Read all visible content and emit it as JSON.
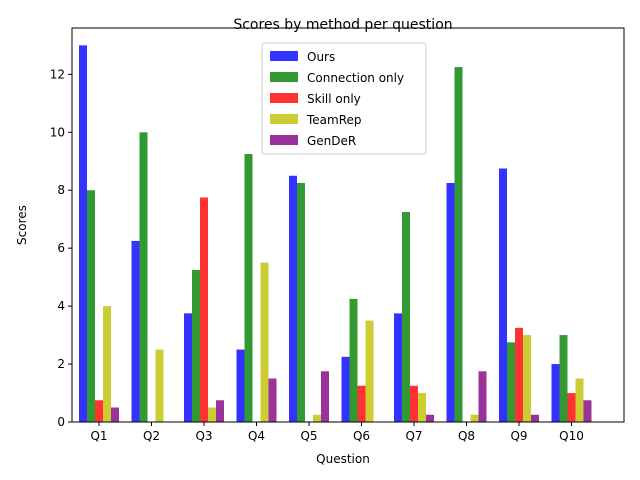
{
  "chart_data": {
    "type": "bar",
    "title": "Scores by method per question",
    "xlabel": "Question",
    "ylabel": "Scores",
    "ylim": [
      0,
      13.6
    ],
    "yticks": [
      0,
      2,
      4,
      6,
      8,
      10,
      12
    ],
    "legend_position": "top-center",
    "grid": false,
    "categories": [
      "Q1",
      "Q2",
      "Q3",
      "Q4",
      "Q5",
      "Q6",
      "Q7",
      "Q8",
      "Q9",
      "Q10"
    ],
    "series": [
      {
        "name": "Ours",
        "color": "#3333ff",
        "values": [
          13.0,
          6.25,
          3.75,
          2.5,
          8.5,
          2.25,
          3.75,
          8.25,
          8.75,
          2.0
        ]
      },
      {
        "name": "Connection only",
        "color": "#339933",
        "values": [
          8.0,
          10.0,
          5.25,
          9.25,
          8.25,
          4.25,
          7.25,
          12.25,
          2.75,
          3.0
        ]
      },
      {
        "name": "Skill only",
        "color": "#ff3333",
        "values": [
          0.75,
          0.0,
          7.75,
          0.0,
          0.0,
          1.25,
          1.25,
          0.0,
          3.25,
          1.0
        ]
      },
      {
        "name": "TeamRep",
        "color": "#cccc33",
        "values": [
          4.0,
          2.5,
          0.5,
          5.5,
          0.25,
          3.5,
          1.0,
          0.25,
          3.0,
          1.5
        ]
      },
      {
        "name": "GenDeR",
        "color": "#993399",
        "values": [
          0.5,
          0.0,
          0.75,
          1.5,
          1.75,
          0.0,
          0.25,
          1.75,
          0.25,
          0.75
        ]
      }
    ]
  }
}
